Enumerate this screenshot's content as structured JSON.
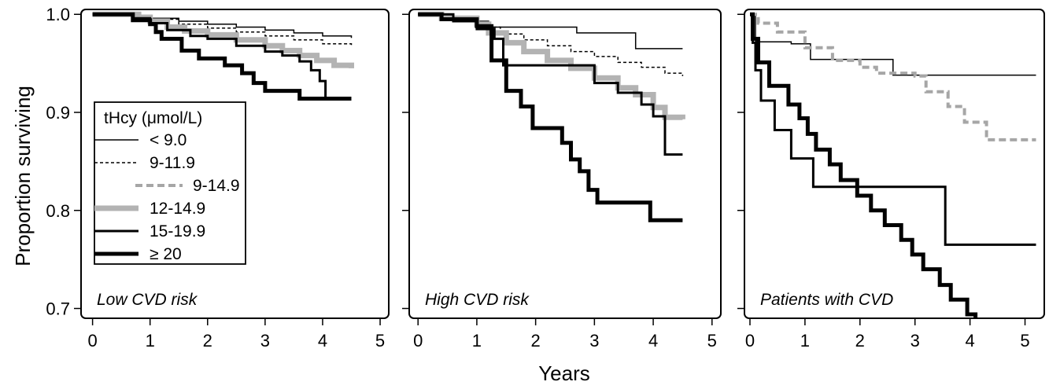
{
  "chart_data": {
    "type": "line",
    "step": true,
    "ylabel": "Proportion surviving",
    "xlabel": "Years",
    "ylim": [
      0.69,
      1.005
    ],
    "yticks": [
      0.7,
      0.8,
      0.9,
      1.0
    ],
    "ytick_labels": [
      "0.7",
      "0.8",
      "0.9",
      "1.0"
    ],
    "xlim": [
      -0.15,
      5.15
    ],
    "xticks": [
      0,
      1,
      2,
      3,
      4,
      5
    ],
    "xtick_labels": [
      "0",
      "1",
      "2",
      "3",
      "4",
      "5"
    ],
    "legend": {
      "title": "tHcy (μmol/L)",
      "placement": "left, inside first panel",
      "entries": [
        {
          "label": "< 9.0",
          "style": "thin"
        },
        {
          "label": "9-11.9",
          "style": "dotted"
        },
        {
          "label": "9-14.9",
          "style": "gray-dashed"
        },
        {
          "label": "12-14.9",
          "style": "gray-thick"
        },
        {
          "label": "15-19.9",
          "style": "medium"
        },
        {
          "label": "≥ 20",
          "style": "extra-thick"
        }
      ]
    },
    "series_styles": {
      "thin": {
        "color": "#000000",
        "width": 1.5,
        "dash": ""
      },
      "dotted": {
        "color": "#000000",
        "width": 1.5,
        "dash": "4,3"
      },
      "gray-dashed": {
        "color": "#a6a6a6",
        "width": 4,
        "dash": "9,5"
      },
      "gray-thick": {
        "color": "#b3b3b3",
        "width": 7,
        "dash": ""
      },
      "medium": {
        "color": "#000000",
        "width": 3,
        "dash": ""
      },
      "extra-thick": {
        "color": "#000000",
        "width": 5,
        "dash": ""
      }
    },
    "panels": [
      {
        "label": "Low CVD risk",
        "series": [
          {
            "style": "thin",
            "x": [
              0,
              0.7,
              1.0,
              1.5,
              2.0,
              2.5,
              3.0,
              3.5,
              4.0,
              4.5
            ],
            "y": [
              1.0,
              0.999,
              0.996,
              0.993,
              0.99,
              0.987,
              0.984,
              0.981,
              0.978,
              0.976
            ]
          },
          {
            "style": "dotted",
            "x": [
              0,
              0.6,
              1.0,
              1.5,
              2.0,
              2.5,
              3.0,
              3.5,
              4.0,
              4.5
            ],
            "y": [
              1.0,
              0.999,
              0.995,
              0.99,
              0.986,
              0.982,
              0.978,
              0.974,
              0.97,
              0.967
            ]
          },
          {
            "style": "gray-thick",
            "x": [
              0,
              0.8,
              1.0,
              1.3,
              1.6,
              2.0,
              2.5,
              3.0,
              3.3,
              3.6,
              3.9,
              4.2,
              4.5
            ],
            "y": [
              1.0,
              0.997,
              0.993,
              0.987,
              0.983,
              0.979,
              0.974,
              0.968,
              0.963,
              0.958,
              0.953,
              0.948,
              0.945
            ]
          },
          {
            "style": "medium",
            "x": [
              0,
              0.7,
              1.0,
              1.3,
              1.7,
              2.0,
              2.5,
              3.0,
              3.3,
              3.6,
              3.8,
              3.95,
              4.05,
              4.5
            ],
            "y": [
              1.0,
              0.996,
              0.991,
              0.984,
              0.978,
              0.975,
              0.968,
              0.962,
              0.958,
              0.952,
              0.943,
              0.932,
              0.914,
              0.914
            ]
          },
          {
            "style": "extra-thick",
            "x": [
              0,
              0.7,
              1.0,
              1.1,
              1.2,
              1.55,
              1.85,
              2.3,
              2.6,
              2.8,
              3.0,
              3.6,
              4.05,
              4.5
            ],
            "y": [
              1.0,
              0.994,
              0.99,
              0.982,
              0.975,
              0.963,
              0.955,
              0.948,
              0.94,
              0.93,
              0.922,
              0.914,
              0.914,
              0.914
            ]
          }
        ]
      },
      {
        "label": "High CVD risk",
        "series": [
          {
            "style": "thin",
            "x": [
              0,
              0.6,
              1.2,
              2.7,
              3.7,
              4.5
            ],
            "y": [
              1.0,
              0.993,
              0.987,
              0.981,
              0.965,
              0.965
            ]
          },
          {
            "style": "dotted",
            "x": [
              0,
              0.6,
              1.0,
              1.4,
              1.8,
              2.2,
              2.6,
              3.0,
              3.4,
              3.8,
              4.2,
              4.5
            ],
            "y": [
              1.0,
              0.993,
              0.987,
              0.98,
              0.974,
              0.968,
              0.962,
              0.957,
              0.951,
              0.946,
              0.94,
              0.937
            ]
          },
          {
            "style": "gray-thick",
            "x": [
              0,
              0.4,
              1.0,
              1.2,
              1.5,
              1.8,
              2.2,
              2.6,
              3.0,
              3.4,
              3.7,
              4.0,
              4.2,
              4.5
            ],
            "y": [
              1.0,
              0.996,
              0.99,
              0.981,
              0.971,
              0.962,
              0.953,
              0.945,
              0.935,
              0.925,
              0.918,
              0.905,
              0.895,
              0.893
            ]
          },
          {
            "style": "medium",
            "x": [
              0,
              0.6,
              1.0,
              1.3,
              1.45,
              2.6,
              3.0,
              3.4,
              3.8,
              4.0,
              4.2,
              4.5
            ],
            "y": [
              1.0,
              0.993,
              0.985,
              0.975,
              0.948,
              0.948,
              0.93,
              0.92,
              0.908,
              0.896,
              0.857,
              0.857
            ]
          },
          {
            "style": "extra-thick",
            "x": [
              0,
              0.4,
              1.0,
              1.25,
              1.5,
              1.75,
              1.95,
              2.45,
              2.6,
              2.75,
              2.9,
              3.05,
              3.95,
              4.5
            ],
            "y": [
              1.0,
              0.995,
              0.988,
              0.953,
              0.922,
              0.906,
              0.884,
              0.869,
              0.852,
              0.84,
              0.821,
              0.808,
              0.79,
              0.79
            ]
          }
        ]
      },
      {
        "label": "Patients with CVD",
        "series": [
          {
            "style": "thin",
            "x": [
              0,
              0.1,
              0.75,
              1.1,
              2.6,
              5.2
            ],
            "y": [
              1.0,
              0.972,
              0.97,
              0.954,
              0.938,
              0.938
            ]
          },
          {
            "style": "gray-dashed",
            "x": [
              0,
              0.15,
              0.5,
              1.0,
              1.5,
              2.0,
              2.3,
              3.0,
              3.2,
              3.6,
              3.9,
              4.3,
              5.2
            ],
            "y": [
              1.0,
              0.991,
              0.982,
              0.966,
              0.953,
              0.946,
              0.94,
              0.937,
              0.921,
              0.906,
              0.89,
              0.872,
              0.872
            ]
          },
          {
            "style": "medium",
            "x": [
              0,
              0.05,
              0.1,
              0.2,
              0.45,
              0.75,
              1.15,
              2.15,
              3.5,
              3.55,
              5.2
            ],
            "y": [
              1.0,
              0.971,
              0.943,
              0.912,
              0.882,
              0.853,
              0.824,
              0.824,
              0.824,
              0.765,
              0.765
            ]
          },
          {
            "style": "extra-thick",
            "x": [
              0,
              0.05,
              0.15,
              0.35,
              0.7,
              0.9,
              1.05,
              1.2,
              1.45,
              1.65,
              1.95,
              2.2,
              2.45,
              2.75,
              2.95,
              3.15,
              3.45,
              3.65,
              3.95,
              4.1,
              4.25,
              5.2
            ],
            "y": [
              1.0,
              0.975,
              0.951,
              0.927,
              0.908,
              0.894,
              0.878,
              0.862,
              0.847,
              0.831,
              0.815,
              0.8,
              0.785,
              0.77,
              0.755,
              0.74,
              0.724,
              0.709,
              0.694,
              0.684,
              0.684,
              0.684
            ]
          }
        ]
      }
    ]
  }
}
